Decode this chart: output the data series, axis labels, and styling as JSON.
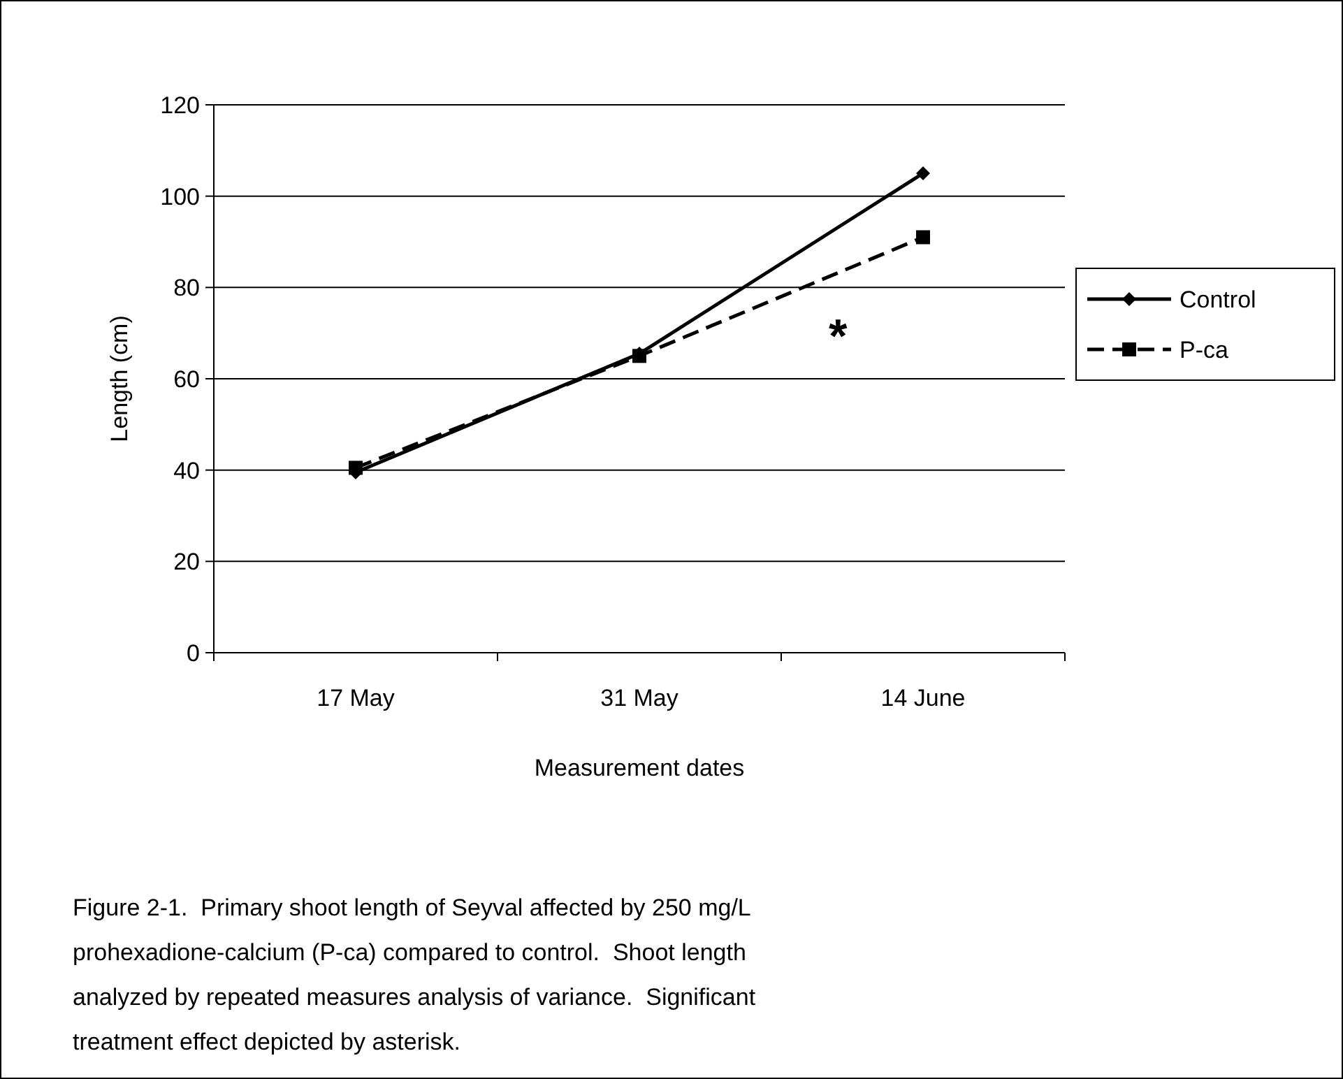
{
  "chart_data": {
    "type": "line",
    "xlabel": "Measurement dates",
    "ylabel": "Length (cm)",
    "categories": [
      "17 May",
      "31 May",
      "14 June"
    ],
    "series": [
      {
        "name": "Control",
        "color": "#000000",
        "values": [
          39.5,
          65.5,
          105
        ],
        "marker": "diamond",
        "line_style": "solid"
      },
      {
        "name": "P-ca",
        "color": "#000000",
        "values": [
          40.5,
          65,
          91
        ],
        "marker": "square",
        "line_style": "dashed"
      }
    ],
    "ylim": [
      0,
      120
    ],
    "yticks": [
      0,
      20,
      40,
      60,
      80,
      100,
      120
    ],
    "grid": "y",
    "legend": "right",
    "annotations": [
      "*",
      "Figure 2-1.  Primary shoot length of Seyval affected by 250 mg/L prohexadione-calcium (P-ca) compared to control.  Shoot length analyzed by repeated measures analysis of variance.  Significant treatment effect depicted by asterisk."
    ]
  }
}
